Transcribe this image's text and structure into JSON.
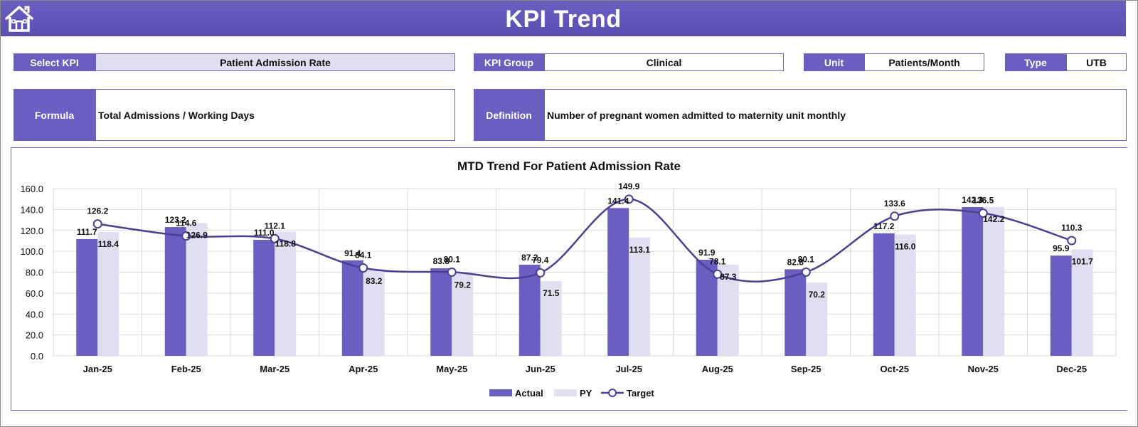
{
  "header": {
    "title": "KPI Trend",
    "home_icon": "home-icon"
  },
  "kpi": {
    "select_label": "Select KPI",
    "select_value": "Patient Admission Rate",
    "group_label": "KPI Group",
    "group_value": "Clinical",
    "unit_label": "Unit",
    "unit_value": "Patients/Month",
    "type_label": "Type",
    "type_value": "UTB",
    "formula_label": "Formula",
    "formula_value": "Total Admissions / Working Days",
    "definition_label": "Definition",
    "definition_value": "Number of pregnant women admitted to maternity unit monthly"
  },
  "colors": {
    "accent": "#6a5fc0",
    "actual": "#6a5fc0",
    "py": "#e0dff1",
    "target": "#4b3f93"
  },
  "chart_data": {
    "type": "bar",
    "title": "MTD Trend For Patient Admission Rate",
    "categories": [
      "Jan-25",
      "Feb-25",
      "Mar-25",
      "Apr-25",
      "May-25",
      "Jun-25",
      "Jul-25",
      "Aug-25",
      "Sep-25",
      "Oct-25",
      "Nov-25",
      "Dec-25"
    ],
    "series": [
      {
        "name": "Actual",
        "kind": "bar",
        "values": [
          111.7,
          123.2,
          111.0,
          91.4,
          83.8,
          87.2,
          141.4,
          91.9,
          82.8,
          117.2,
          142.3,
          95.9
        ]
      },
      {
        "name": "PY",
        "kind": "bar",
        "values": [
          118.4,
          126.9,
          118.8,
          83.2,
          79.2,
          71.5,
          113.1,
          87.3,
          70.2,
          116.0,
          142.2,
          101.7
        ]
      },
      {
        "name": "Target",
        "kind": "line",
        "values": [
          126.2,
          114.6,
          112.1,
          84.1,
          80.1,
          79.4,
          149.9,
          78.1,
          80.1,
          133.6,
          136.5,
          110.3
        ]
      }
    ],
    "yticks": [
      "0.0",
      "20.0",
      "40.0",
      "60.0",
      "80.0",
      "100.0",
      "120.0",
      "140.0",
      "160.0"
    ],
    "ylim": [
      0,
      160
    ],
    "xlabel": "",
    "ylabel": "",
    "legend": "bottom-center",
    "grid": true
  }
}
